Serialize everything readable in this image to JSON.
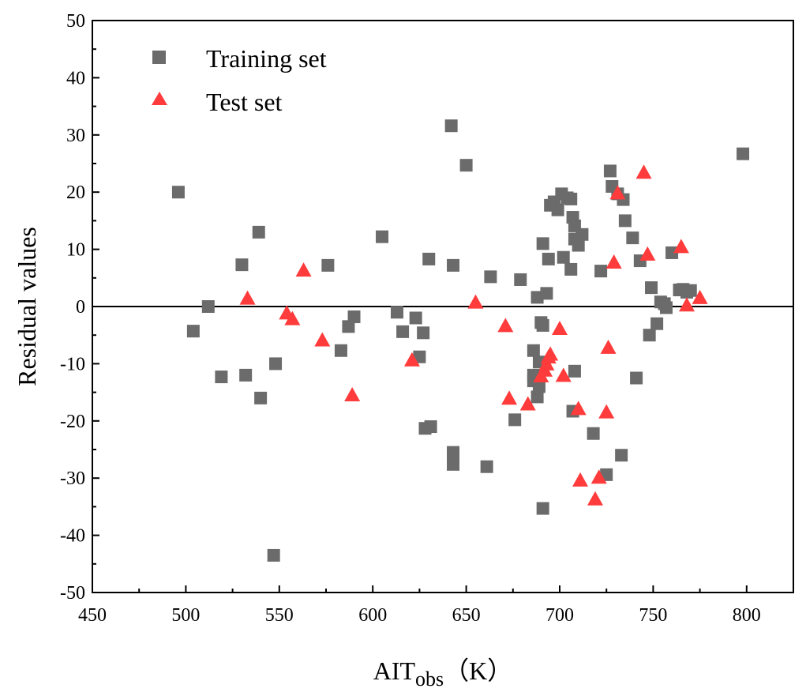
{
  "chart_data": {
    "type": "scatter",
    "title": "",
    "xlabel": "AIT",
    "xlabel_sub": "obs",
    "xlabel_unit": "（K）",
    "ylabel": "Residual values",
    "xlim": [
      450,
      825
    ],
    "ylim": [
      -50,
      50
    ],
    "xticks": [
      450,
      500,
      550,
      600,
      650,
      700,
      750,
      800
    ],
    "yticks": [
      -50,
      -40,
      -30,
      -20,
      -10,
      0,
      10,
      20,
      30,
      40,
      50
    ],
    "zero_line": true,
    "legend_position": "top-left",
    "series": [
      {
        "name": "Training set",
        "marker": "square",
        "color": "#6b6b6b",
        "points": [
          [
            496,
            20
          ],
          [
            504,
            -4.3
          ],
          [
            512,
            0
          ],
          [
            519,
            -12.3
          ],
          [
            530,
            7.3
          ],
          [
            532,
            -12
          ],
          [
            539,
            13
          ],
          [
            540,
            -16
          ],
          [
            547,
            -43.5
          ],
          [
            548,
            -10
          ],
          [
            576,
            7.2
          ],
          [
            583,
            -7.7
          ],
          [
            587,
            -3.5
          ],
          [
            590,
            -1.8
          ],
          [
            605,
            12.2
          ],
          [
            613,
            -1
          ],
          [
            616,
            -4.4
          ],
          [
            623,
            -2
          ],
          [
            625,
            -8.8
          ],
          [
            627,
            -4.6
          ],
          [
            628,
            -21.3
          ],
          [
            630,
            8.3
          ],
          [
            631,
            -21
          ],
          [
            642,
            31.6
          ],
          [
            643,
            7.2
          ],
          [
            643,
            -25.5
          ],
          [
            643,
            -27.6
          ],
          [
            650,
            24.7
          ],
          [
            661,
            -28
          ],
          [
            663,
            5.2
          ],
          [
            676,
            -19.8
          ],
          [
            679,
            4.7
          ],
          [
            686,
            -7.7
          ],
          [
            686,
            -12
          ],
          [
            686,
            -13
          ],
          [
            688,
            1.6
          ],
          [
            688,
            -15.8
          ],
          [
            689,
            -14
          ],
          [
            689,
            -9.7
          ],
          [
            690,
            -2.8
          ],
          [
            691,
            -35.3
          ],
          [
            691,
            -3.3
          ],
          [
            691,
            11
          ],
          [
            693,
            2.3
          ],
          [
            694,
            8.3
          ],
          [
            695,
            17.7
          ],
          [
            697,
            18.3
          ],
          [
            699,
            16.9
          ],
          [
            701,
            19.7
          ],
          [
            702,
            8.6
          ],
          [
            704,
            19
          ],
          [
            706,
            18.8
          ],
          [
            706,
            6.5
          ],
          [
            707,
            -18.3
          ],
          [
            707,
            15.6
          ],
          [
            708,
            11.8
          ],
          [
            708,
            -11.3
          ],
          [
            708,
            14.1
          ],
          [
            710,
            10.7
          ],
          [
            712,
            12.6
          ],
          [
            718,
            -22.2
          ],
          [
            722,
            6.2
          ],
          [
            725,
            -29.4
          ],
          [
            727,
            23.7
          ],
          [
            728,
            21
          ],
          [
            731,
            19.7
          ],
          [
            733,
            -26
          ],
          [
            734,
            18.7
          ],
          [
            735,
            15
          ],
          [
            739,
            12
          ],
          [
            741,
            -12.5
          ],
          [
            743,
            8
          ],
          [
            748,
            -5
          ],
          [
            749,
            3.3
          ],
          [
            752,
            -3
          ],
          [
            754,
            0.8
          ],
          [
            756,
            0.5
          ],
          [
            757,
            -0.2
          ],
          [
            760,
            9.4
          ],
          [
            764,
            2.9
          ],
          [
            766,
            3
          ],
          [
            768,
            2.5
          ],
          [
            770,
            2.8
          ],
          [
            798,
            26.7
          ]
        ]
      },
      {
        "name": "Test set",
        "marker": "triangle",
        "color": "#ff3b3b",
        "points": [
          [
            533,
            1.3
          ],
          [
            554,
            -1.3
          ],
          [
            557,
            -2.3
          ],
          [
            563,
            6.2
          ],
          [
            573,
            -6
          ],
          [
            589,
            -15.6
          ],
          [
            621,
            -9.5
          ],
          [
            655,
            0.6
          ],
          [
            671,
            -3.5
          ],
          [
            673,
            -16.2
          ],
          [
            683,
            -17.2
          ],
          [
            690,
            -12.3
          ],
          [
            692,
            -11.3
          ],
          [
            693,
            -10.2
          ],
          [
            694,
            -9
          ],
          [
            695,
            -8.5
          ],
          [
            700,
            -4
          ],
          [
            702,
            -12.2
          ],
          [
            710,
            -18
          ],
          [
            711,
            -30.5
          ],
          [
            719,
            -33.8
          ],
          [
            721,
            -30
          ],
          [
            725,
            -18.6
          ],
          [
            726,
            -7.3
          ],
          [
            729,
            7.6
          ],
          [
            731,
            19.7
          ],
          [
            745,
            23.3
          ],
          [
            747,
            9
          ],
          [
            765,
            10.3
          ],
          [
            768,
            0.1
          ],
          [
            775,
            1.4
          ]
        ]
      }
    ]
  }
}
